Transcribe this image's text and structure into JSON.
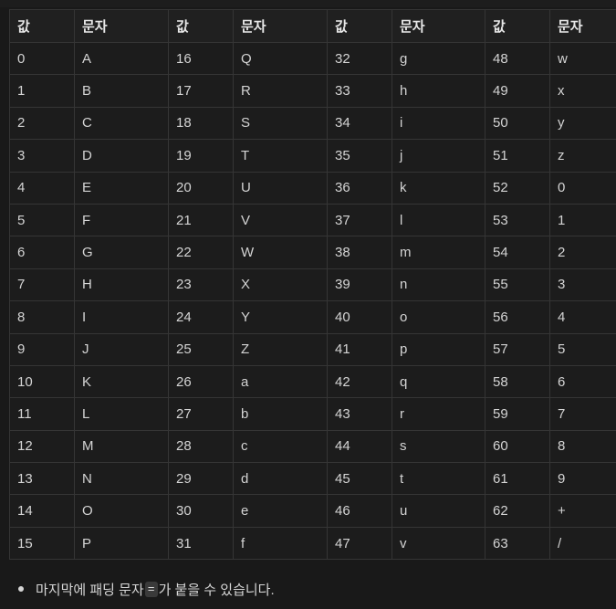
{
  "table": {
    "headers": [
      "값",
      "문자",
      "값",
      "문자",
      "값",
      "문자",
      "값",
      "문자"
    ],
    "rows": [
      [
        "0",
        "A",
        "16",
        "Q",
        "32",
        "g",
        "48",
        "w"
      ],
      [
        "1",
        "B",
        "17",
        "R",
        "33",
        "h",
        "49",
        "x"
      ],
      [
        "2",
        "C",
        "18",
        "S",
        "34",
        "i",
        "50",
        "y"
      ],
      [
        "3",
        "D",
        "19",
        "T",
        "35",
        "j",
        "51",
        "z"
      ],
      [
        "4",
        "E",
        "20",
        "U",
        "36",
        "k",
        "52",
        "0"
      ],
      [
        "5",
        "F",
        "21",
        "V",
        "37",
        "l",
        "53",
        "1"
      ],
      [
        "6",
        "G",
        "22",
        "W",
        "38",
        "m",
        "54",
        "2"
      ],
      [
        "7",
        "H",
        "23",
        "X",
        "39",
        "n",
        "55",
        "3"
      ],
      [
        "8",
        "I",
        "24",
        "Y",
        "40",
        "o",
        "56",
        "4"
      ],
      [
        "9",
        "J",
        "25",
        "Z",
        "41",
        "p",
        "57",
        "5"
      ],
      [
        "10",
        "K",
        "26",
        "a",
        "42",
        "q",
        "58",
        "6"
      ],
      [
        "11",
        "L",
        "27",
        "b",
        "43",
        "r",
        "59",
        "7"
      ],
      [
        "12",
        "M",
        "28",
        "c",
        "44",
        "s",
        "60",
        "8"
      ],
      [
        "13",
        "N",
        "29",
        "d",
        "45",
        "t",
        "61",
        "9"
      ],
      [
        "14",
        "O",
        "30",
        "e",
        "46",
        "u",
        "62",
        "+"
      ],
      [
        "15",
        "P",
        "31",
        "f",
        "47",
        "v",
        "63",
        "/"
      ]
    ]
  },
  "note": {
    "prefix": "마지막에 패딩 문자 ",
    "code": "=",
    "suffix": "가 붙을 수 있습니다."
  }
}
